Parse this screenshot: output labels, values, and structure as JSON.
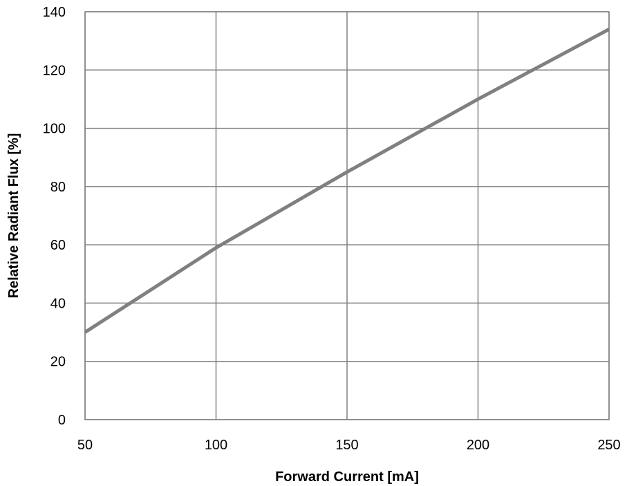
{
  "chart_data": {
    "type": "line",
    "title": "",
    "xlabel": "Forward Current [mA]",
    "ylabel": "Relative Radiant Flux [%]",
    "xlim": [
      50,
      250
    ],
    "ylim": [
      0,
      140
    ],
    "x_ticks": [
      50,
      100,
      150,
      200,
      250
    ],
    "y_ticks": [
      0,
      20,
      40,
      60,
      80,
      100,
      120,
      140
    ],
    "x_tick_labels": [
      "50",
      "100",
      "150",
      "200",
      "250"
    ],
    "y_tick_labels": [
      "0",
      "20",
      "40",
      "60",
      "80",
      "100",
      "120",
      "140"
    ],
    "grid": true,
    "legend": "none",
    "series": [
      {
        "color": "#808080",
        "x": [
          50,
          75,
          100,
          125,
          150,
          175,
          200,
          225,
          250
        ],
        "y": [
          30,
          44.5,
          59,
          72,
          85,
          97.5,
          110,
          122,
          134
        ]
      }
    ]
  }
}
